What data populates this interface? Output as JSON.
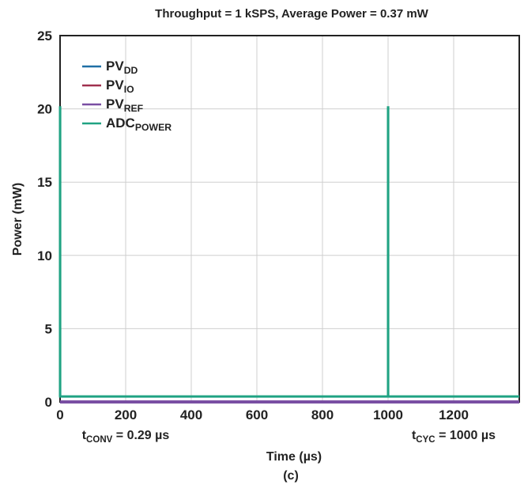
{
  "chart_data": {
    "type": "line",
    "title": "Throughput = 1 kSPS, Average Power = 0.37 mW",
    "xlabel": "Time (µs)",
    "ylabel": "Power (mW)",
    "caption": "(c)",
    "xlim": [
      0,
      1400
    ],
    "ylim": [
      0,
      25
    ],
    "xticks": [
      0,
      200,
      400,
      600,
      800,
      1000,
      1200
    ],
    "yticks": [
      0,
      5,
      10,
      15,
      20,
      25
    ],
    "grid": true,
    "legend_placement": "top-left",
    "annotations": [
      {
        "base": "t",
        "sub": "CONV",
        "text": " = 0.29 µs",
        "x": 200
      },
      {
        "base": "t",
        "sub": "CYC",
        "text": " = 1000 µs",
        "x": 1200
      }
    ],
    "series": [
      {
        "name": "PV",
        "sub": "DD",
        "color": "#1f6fa5",
        "x": [
          0,
          0,
          0.29,
          0.29,
          1000,
          1000,
          1000.29,
          1000.29,
          1400
        ],
        "y": [
          0,
          0,
          0,
          0,
          0,
          0,
          0,
          0,
          0
        ]
      },
      {
        "name": "PV",
        "sub": "IO",
        "color": "#a0304f",
        "x": [
          0,
          1400
        ],
        "y": [
          0,
          0
        ]
      },
      {
        "name": "PV",
        "sub": "REF",
        "color": "#7a4fa3",
        "x": [
          0,
          1400
        ],
        "y": [
          0,
          0
        ]
      },
      {
        "name": "ADC",
        "sub": "POWER",
        "color": "#20a383",
        "x": [
          0,
          0,
          0.29,
          0.29,
          1000,
          1000,
          1000.29,
          1000.29,
          1400
        ],
        "y": [
          0.37,
          20.1,
          20.1,
          0.37,
          0.37,
          20.1,
          20.1,
          0.37,
          0.37
        ]
      }
    ]
  }
}
